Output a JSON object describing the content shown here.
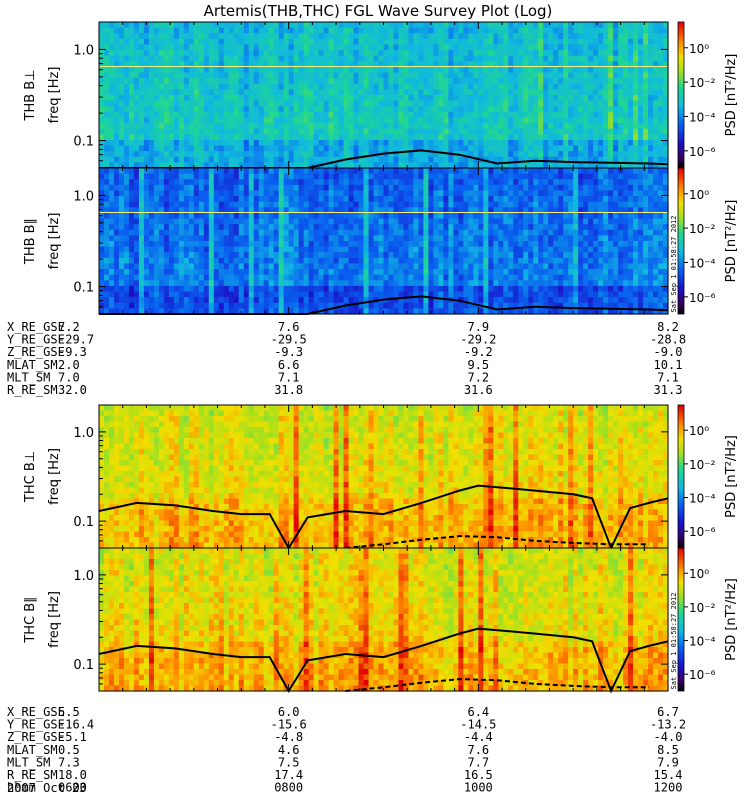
{
  "chart_data": {
    "type": "heatmap",
    "title": "Artemis(THB,THC) FGL Wave Survey Plot (Log)",
    "colorbar": {
      "label": "PSD [nT²/Hz]",
      "ticks": [
        "10⁰",
        "10⁻²",
        "10⁻⁴",
        "10⁻⁶"
      ],
      "tick_values": [
        0,
        -2,
        -4,
        -6
      ],
      "log_range": [
        -7,
        1.5
      ]
    },
    "freq_axis": {
      "label": "freq [Hz]",
      "ticks": [
        "1.0",
        "0.1"
      ],
      "tick_values": [
        1.0,
        0.1
      ],
      "range": [
        0.05,
        2.0
      ],
      "scale": "log"
    },
    "panels": [
      {
        "name": "THB B⊥",
        "group": "THB",
        "intensity": "low",
        "stamp": ""
      },
      {
        "name": "THB B∥",
        "group": "THB",
        "intensity": "lowest",
        "stamp": "Sat Sep  1 01:58:27 2012"
      },
      {
        "name": "THC B⊥",
        "group": "THC",
        "intensity": "high",
        "stamp": ""
      },
      {
        "name": "THC B∥",
        "group": "THC",
        "intensity": "high",
        "stamp": "Sat Sep  1 01:58:27 2012"
      }
    ],
    "ephemeris_thb": {
      "rows": [
        {
          "label": "X_RE_GSE",
          "values": [
            "7.2",
            "7.6",
            "7.9",
            "8.2"
          ]
        },
        {
          "label": "Y_RE_GSE",
          "values": [
            "-29.7",
            "-29.5",
            "-29.2",
            "-28.8"
          ]
        },
        {
          "label": "Z_RE_GSE",
          "values": [
            "-9.3",
            "-9.3",
            "-9.2",
            "-9.0"
          ]
        },
        {
          "label": "MLAT_SM",
          "values": [
            "2.0",
            "6.6",
            "9.5",
            "10.1"
          ]
        },
        {
          "label": "MLT_SM",
          "values": [
            "7.0",
            "7.1",
            "7.2",
            "7.1"
          ]
        },
        {
          "label": "R_RE_SM",
          "values": [
            "32.0",
            "31.8",
            "31.6",
            "31.3"
          ]
        }
      ]
    },
    "ephemeris_thc": {
      "rows": [
        {
          "label": "X_RE_GSE",
          "values": [
            "5.5",
            "6.0",
            "6.4",
            "6.7"
          ]
        },
        {
          "label": "Y_RE_GSE",
          "values": [
            "-16.4",
            "-15.6",
            "-14.5",
            "-13.2"
          ]
        },
        {
          "label": "Z_RE_GSE",
          "values": [
            "-5.1",
            "-4.8",
            "-4.4",
            "-4.0"
          ]
        },
        {
          "label": "MLAT_SM",
          "values": [
            "0.5",
            "4.6",
            "7.6",
            "8.5"
          ]
        },
        {
          "label": "MLT_SM",
          "values": [
            "7.3",
            "7.5",
            "7.7",
            "7.9"
          ]
        },
        {
          "label": "R_RE_SM",
          "values": [
            "18.0",
            "17.4",
            "16.5",
            "15.4"
          ]
        },
        {
          "label": "hhmm",
          "values": [
            "0600",
            "0800",
            "1000",
            "1200"
          ]
        }
      ]
    },
    "date_label": "2007 Oct 23",
    "time_range_hours": [
      6,
      12
    ],
    "reference_line_freq": 0.65,
    "cyclotron_curve_thb": {
      "hours": [
        6.0,
        8.2,
        8.6,
        9.0,
        9.4,
        9.8,
        10.2,
        10.6,
        11.0,
        11.4,
        11.8,
        12.0
      ],
      "freq": [
        0.05,
        0.05,
        0.062,
        0.072,
        0.078,
        0.07,
        0.056,
        0.06,
        0.058,
        0.057,
        0.056,
        0.055
      ]
    },
    "cyclotron_curve_thc": {
      "hours": [
        6.0,
        6.4,
        6.8,
        7.0,
        7.2,
        7.5,
        7.8,
        8.0,
        8.2,
        8.6,
        9.0,
        9.4,
        9.8,
        10.0,
        10.2,
        10.6,
        11.0,
        11.2,
        11.4,
        11.6,
        11.8,
        12.0
      ],
      "freq": [
        0.13,
        0.16,
        0.15,
        0.14,
        0.13,
        0.12,
        0.12,
        0.05,
        0.11,
        0.13,
        0.12,
        0.16,
        0.22,
        0.25,
        0.24,
        0.22,
        0.2,
        0.18,
        0.05,
        0.14,
        0.16,
        0.18
      ]
    },
    "harmonic_curve_thc": {
      "hours": [
        8.6,
        9.0,
        9.4,
        9.8,
        10.2,
        10.6,
        11.0,
        11.4,
        11.8
      ],
      "freq": [
        0.05,
        0.055,
        0.062,
        0.068,
        0.066,
        0.06,
        0.057,
        0.055,
        0.055
      ]
    }
  }
}
